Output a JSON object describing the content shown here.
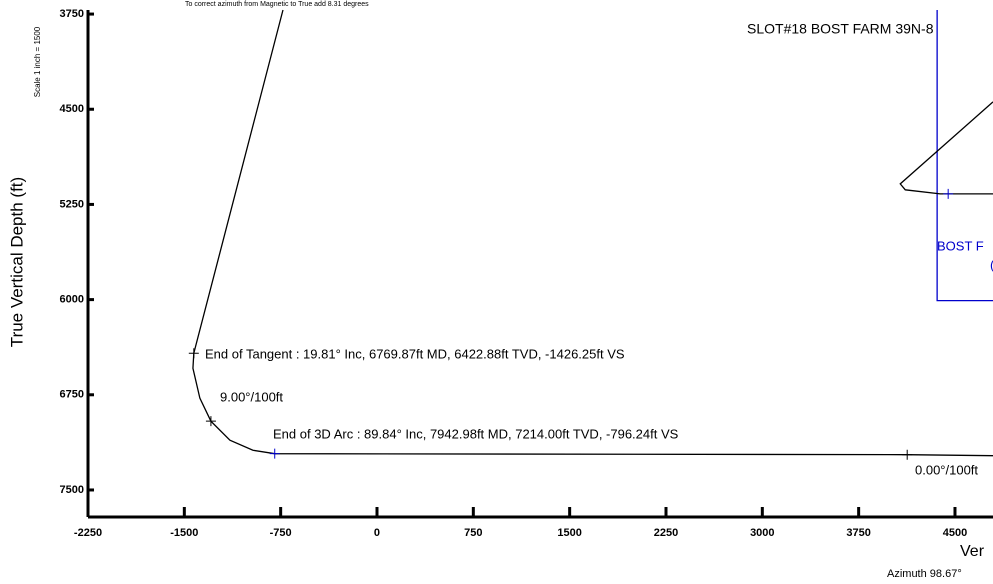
{
  "chart_data": {
    "type": "line",
    "title": "SLOT#18 BOST FARM 39N-8",
    "note": "To correct azimuth from Magnetic to True add 8.31 degrees",
    "scale_label": "Scale 1 inch = 1500",
    "y_label": "True Vertical Depth (ft)",
    "x_label": "Ver",
    "azimuth_label": "Azimuth 98.67°",
    "xlim": [
      -2250,
      4796
    ],
    "ylim": [
      7713,
      3718
    ],
    "xticks": [
      -2250,
      -1500,
      -750,
      0,
      750,
      1500,
      2250,
      3000,
      3750,
      4500
    ],
    "yticks": [
      3750,
      4500,
      5250,
      6000,
      6750,
      7500
    ],
    "series": [
      {
        "color": "#000000",
        "style": "line",
        "x": [
          -732,
          -1426.25,
          -1433,
          -1379,
          -1293,
          -1145,
          -966,
          -796.24,
          4128,
          4796
        ],
        "y": [
          3718,
          6422.88,
          6541,
          6777,
          6958,
          7108,
          7187,
          7214,
          7222,
          7230
        ]
      },
      {
        "color": "#0000cc",
        "style": "line",
        "x": [
          4361,
          4361,
          4796
        ],
        "y": [
          3718,
          6008,
          6008
        ]
      },
      {
        "color": "#000000",
        "style": "line",
        "x": [
          4796,
          4074,
          4113,
          4385,
          4796
        ],
        "y": [
          4442,
          5088,
          5135,
          5167,
          5167
        ]
      },
      {
        "color": "#000000",
        "style": "marker",
        "x": [
          -1426.25,
          -1293,
          4128
        ],
        "y": [
          6422.88,
          6958,
          7222
        ]
      },
      {
        "color": "#0000cc",
        "style": "marker",
        "x": [
          -796.24,
          4447
        ],
        "y": [
          7214,
          5167
        ]
      }
    ],
    "annotations": [
      {
        "text": "End of Tangent : 19.81° Inc, 6769.87ft MD, 6422.88ft TVD, -1426.25ft VS",
        "color": "#000000"
      },
      {
        "text": "9.00°/100ft",
        "color": "#000000"
      },
      {
        "text": "End of 3D Arc : 89.84° Inc, 7942.98ft MD, 7214.00ft TVD, -796.24ft VS",
        "color": "#000000"
      },
      {
        "text": "0.00°/100ft",
        "color": "#000000"
      },
      {
        "text": "BOST F",
        "color": "#0000cc"
      },
      {
        "text": "(",
        "color": "#0000cc"
      }
    ]
  }
}
